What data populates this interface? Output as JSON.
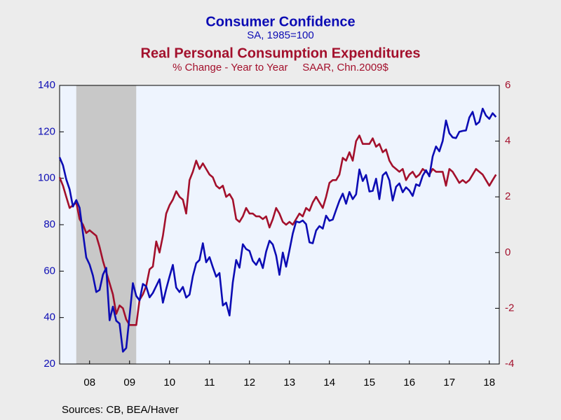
{
  "chart_data": {
    "type": "line",
    "title": "Consumer Confidence",
    "subtitle": "SA, 1985=100",
    "title2": "Real Personal Consumption Expenditures",
    "subtitle2": "% Change - Year to Year     SAAR, Chn.2009$",
    "source": "Sources:  CB, BEA/Haver",
    "x": [
      "2007-07",
      "2007-08",
      "2007-09",
      "2007-10",
      "2007-11",
      "2007-12",
      "2008-01",
      "2008-02",
      "2008-03",
      "2008-04",
      "2008-05",
      "2008-06",
      "2008-07",
      "2008-08",
      "2008-09",
      "2008-10",
      "2008-11",
      "2008-12",
      "2009-01",
      "2009-02",
      "2009-03",
      "2009-04",
      "2009-05",
      "2009-06",
      "2009-07",
      "2009-08",
      "2009-09",
      "2009-10",
      "2009-11",
      "2009-12",
      "2010-01",
      "2010-02",
      "2010-03",
      "2010-04",
      "2010-05",
      "2010-06",
      "2010-07",
      "2010-08",
      "2010-09",
      "2010-10",
      "2010-11",
      "2010-12",
      "2011-01",
      "2011-02",
      "2011-03",
      "2011-04",
      "2011-05",
      "2011-06",
      "2011-07",
      "2011-08",
      "2011-09",
      "2011-10",
      "2011-11",
      "2011-12",
      "2012-01",
      "2012-02",
      "2012-03",
      "2012-04",
      "2012-05",
      "2012-06",
      "2012-07",
      "2012-08",
      "2012-09",
      "2012-10",
      "2012-11",
      "2012-12",
      "2013-01",
      "2013-02",
      "2013-03",
      "2013-04",
      "2013-05",
      "2013-06",
      "2013-07",
      "2013-08",
      "2013-09",
      "2013-10",
      "2013-11",
      "2013-12",
      "2014-01",
      "2014-02",
      "2014-03",
      "2014-04",
      "2014-05",
      "2014-06",
      "2014-07",
      "2014-08",
      "2014-09",
      "2014-10",
      "2014-11",
      "2014-12",
      "2015-01",
      "2015-02",
      "2015-03",
      "2015-04",
      "2015-05",
      "2015-06",
      "2015-07",
      "2015-08",
      "2015-09",
      "2015-10",
      "2015-11",
      "2015-12",
      "2016-01",
      "2016-02",
      "2016-03",
      "2016-04",
      "2016-05",
      "2016-06",
      "2016-07",
      "2016-08",
      "2016-09",
      "2016-10",
      "2016-11",
      "2016-12",
      "2017-01",
      "2017-02",
      "2017-03",
      "2017-04",
      "2017-05",
      "2017-06",
      "2017-07",
      "2017-08",
      "2017-09",
      "2017-10",
      "2017-11",
      "2017-12",
      "2018-01",
      "2018-02",
      "2018-03",
      "2018-04",
      "2018-05",
      "2018-06"
    ],
    "series": [
      {
        "name": "Consumer Confidence",
        "color": "#0c0cb4",
        "axis": "y",
        "values": [
          109,
          105.6,
          99.5,
          95.2,
          87.8,
          90.6,
          87.3,
          76.4,
          65.9,
          62.8,
          58.1,
          51,
          51.9,
          58.5,
          61.4,
          38.8,
          44.7,
          38.6,
          37.4,
          25.3,
          26.9,
          40.8,
          54.8,
          49.3,
          47.4,
          54.5,
          53.4,
          48.7,
          50.6,
          53.6,
          56.5,
          46.4,
          52.3,
          57.7,
          62.7,
          52.9,
          51,
          53.2,
          48.6,
          49.9,
          57.8,
          63.4,
          64.8,
          72,
          63.8,
          66,
          61.7,
          57.6,
          59.2,
          45.2,
          46.4,
          40.9,
          55.2,
          64.8,
          61.5,
          71.6,
          69.5,
          68.7,
          64.4,
          62.7,
          65.4,
          61.3,
          68.4,
          73.1,
          71.5,
          66.7,
          58.4,
          68,
          61.9,
          69,
          76.2,
          81.4,
          81,
          81.8,
          80.2,
          72.4,
          72,
          77.5,
          79.4,
          78.3,
          83.9,
          81.7,
          82.2,
          86.4,
          90.3,
          93.4,
          89,
          94.1,
          91,
          93.1,
          103.8,
          98.8,
          101.4,
          94.3,
          94.6,
          99.8,
          91,
          101.3,
          102.6,
          99.1,
          90.4,
          96.3,
          97.8,
          94,
          96.1,
          94.7,
          92.4,
          97.4,
          96.7,
          101.1,
          103.5,
          100.8,
          109.4,
          113.7,
          111.6,
          116.1,
          124.9,
          119.4,
          117.6,
          117.3,
          120,
          120.4,
          120.6,
          126.2,
          128.6,
          123.1,
          124.3,
          130,
          127,
          125.6,
          128,
          126.4
        ]
      },
      {
        "name": "Real Personal Consumption Expenditures",
        "color": "#a3102c",
        "axis": "y2",
        "values": [
          2.7,
          2.4,
          2,
          1.6,
          1.7,
          1.8,
          1.2,
          1,
          0.7,
          0.8,
          0.7,
          0.6,
          0.2,
          -0.3,
          -0.7,
          -1.1,
          -1.5,
          -2.2,
          -1.9,
          -2,
          -2.4,
          -2.6,
          -2.6,
          -2.6,
          -1.7,
          -1.5,
          -1.2,
          -0.6,
          -0.5,
          0.4,
          0,
          0.6,
          1.4,
          1.7,
          1.9,
          2.2,
          2,
          1.9,
          1.4,
          2.6,
          2.9,
          3.3,
          3,
          3.2,
          3,
          2.8,
          2.7,
          2.4,
          2.3,
          2.4,
          2,
          2.1,
          1.9,
          1.2,
          1.1,
          1.3,
          1.6,
          1.4,
          1.4,
          1.3,
          1.3,
          1.2,
          1.3,
          0.9,
          1.2,
          1.6,
          1.4,
          1.1,
          1,
          1.1,
          1,
          1.2,
          1.4,
          1.3,
          1.6,
          1.5,
          1.8,
          2,
          1.8,
          1.6,
          2,
          2.5,
          2.6,
          2.6,
          2.8,
          3.4,
          3.3,
          3.6,
          3.3,
          4,
          4.2,
          3.9,
          3.9,
          3.9,
          4.1,
          3.8,
          3.9,
          3.6,
          3.7,
          3.3,
          3.1,
          3,
          2.9,
          3,
          2.6,
          2.8,
          2.9,
          2.7,
          2.8,
          3,
          2.9,
          2.8,
          3,
          2.9,
          2.9,
          2.9,
          2.4,
          3,
          2.9,
          2.7,
          2.5,
          2.6,
          2.5,
          2.6,
          2.8,
          3,
          2.9,
          2.8,
          2.6,
          2.4,
          2.6,
          2.8
        ]
      }
    ],
    "xlim": [
      "2007-07",
      "2018-07"
    ],
    "xticks": [
      {
        "value": "2008-04",
        "label": "08"
      },
      {
        "value": "2009-04",
        "label": "09"
      },
      {
        "value": "2010-04",
        "label": "10"
      },
      {
        "value": "2011-04",
        "label": "11"
      },
      {
        "value": "2012-04",
        "label": "12"
      },
      {
        "value": "2013-04",
        "label": "13"
      },
      {
        "value": "2014-04",
        "label": "14"
      },
      {
        "value": "2015-04",
        "label": "15"
      },
      {
        "value": "2016-04",
        "label": "16"
      },
      {
        "value": "2017-04",
        "label": "17"
      },
      {
        "value": "2018-04",
        "label": "18"
      }
    ],
    "ylim": [
      20,
      140
    ],
    "yticks": [
      20,
      40,
      60,
      80,
      100,
      120,
      140
    ],
    "y2lim": [
      -4,
      6
    ],
    "y2ticks": [
      -4,
      -2,
      0,
      2,
      4,
      6
    ],
    "recession": {
      "start": "2007-12",
      "end": "2009-06",
      "color": "#c8c8c8"
    },
    "plot_background": "#eef4fe"
  }
}
